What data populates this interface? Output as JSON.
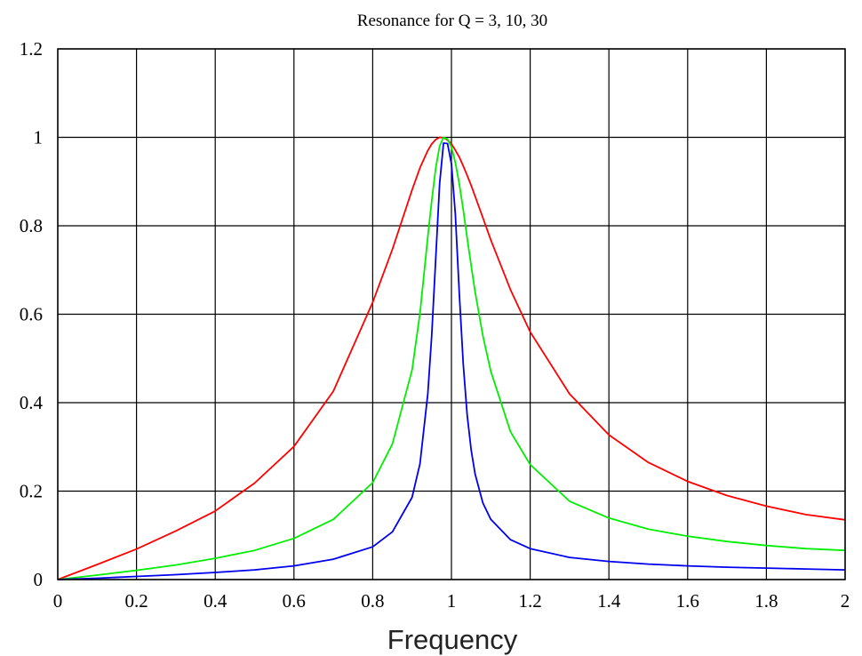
{
  "chart_data": {
    "type": "line",
    "title": "Resonance for Q = 3, 10, 30",
    "xlabel": "Frequency",
    "ylabel": "",
    "xlim": [
      0,
      2
    ],
    "ylim": [
      0,
      1.2
    ],
    "grid": true,
    "x_ticks": [
      "0",
      "0.2",
      "0.4",
      "0.6",
      "0.8",
      "1",
      "1.2",
      "1.4",
      "1.6",
      "1.8",
      "2"
    ],
    "y_ticks": [
      "0",
      "0.2",
      "0.4",
      "0.6",
      "0.8",
      "1",
      "1.2"
    ],
    "x": [
      0,
      0.1,
      0.2,
      0.3,
      0.4,
      0.5,
      0.6,
      0.7,
      0.8,
      0.85,
      0.9,
      0.92,
      0.94,
      0.95,
      0.96,
      0.97,
      0.98,
      0.99,
      1.0,
      1.01,
      1.02,
      1.03,
      1.04,
      1.05,
      1.06,
      1.08,
      1.1,
      1.15,
      1.2,
      1.3,
      1.4,
      1.5,
      1.6,
      1.7,
      1.8,
      1.9,
      2.0
    ],
    "series": [
      {
        "color": "#ff0000",
        "values": [
          0,
          0.034,
          0.069,
          0.11,
          0.155,
          0.218,
          0.301,
          0.426,
          0.627,
          0.747,
          0.881,
          0.931,
          0.97,
          0.985,
          0.995,
          1.0,
          0.999,
          0.994,
          0.985,
          0.971,
          0.955,
          0.935,
          0.914,
          0.891,
          0.867,
          0.818,
          0.768,
          0.655,
          0.56,
          0.42,
          0.327,
          0.265,
          0.222,
          0.19,
          0.166,
          0.147,
          0.135
        ]
      },
      {
        "color": "#00ee00",
        "values": [
          0,
          0.01,
          0.021,
          0.033,
          0.048,
          0.066,
          0.093,
          0.136,
          0.219,
          0.307,
          0.474,
          0.602,
          0.775,
          0.856,
          0.93,
          0.98,
          1.0,
          0.996,
          0.978,
          0.943,
          0.894,
          0.836,
          0.772,
          0.71,
          0.651,
          0.551,
          0.471,
          0.334,
          0.26,
          0.177,
          0.139,
          0.114,
          0.098,
          0.086,
          0.077,
          0.07,
          0.066
        ]
      },
      {
        "color": "#0000ee",
        "values": [
          0,
          0.003,
          0.007,
          0.011,
          0.016,
          0.022,
          0.031,
          0.046,
          0.074,
          0.108,
          0.186,
          0.262,
          0.42,
          0.552,
          0.725,
          0.895,
          0.987,
          0.986,
          0.94,
          0.826,
          0.645,
          0.487,
          0.372,
          0.293,
          0.239,
          0.173,
          0.136,
          0.09,
          0.07,
          0.05,
          0.041,
          0.035,
          0.031,
          0.028,
          0.026,
          0.024,
          0.022
        ]
      }
    ]
  }
}
